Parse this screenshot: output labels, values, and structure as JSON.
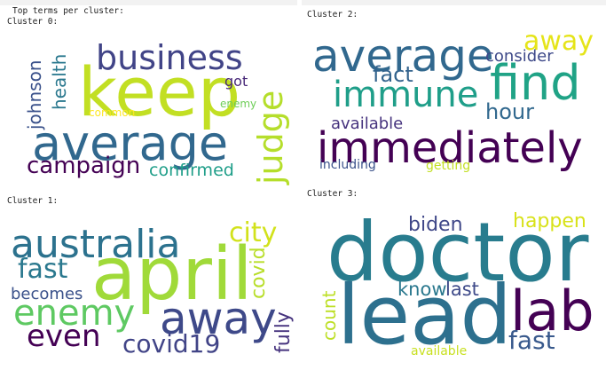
{
  "header": {
    "text": "Top terms per cluster:"
  },
  "clusters": [
    {
      "label": "Cluster 0:",
      "words": [
        "business",
        "keep",
        "average",
        "campaign",
        "confirmed",
        "judge",
        "health",
        "johnson",
        "got",
        "enemy",
        "common"
      ]
    },
    {
      "label": "Cluster 1:",
      "words": [
        "australia",
        "april",
        "fast",
        "enemy",
        "becomes",
        "even",
        "away",
        "covid19",
        "city",
        "covid",
        "fully"
      ]
    },
    {
      "label": "Cluster 2:",
      "words": [
        "average",
        "away",
        "consider",
        "fact",
        "find",
        "immune",
        "hour",
        "available",
        "immediately",
        "including",
        "getting"
      ]
    },
    {
      "label": "Cluster 3:",
      "words": [
        "biden",
        "happen",
        "doctor",
        "lead",
        "know",
        "last",
        "lab",
        "count",
        "fast",
        "available"
      ]
    }
  ]
}
